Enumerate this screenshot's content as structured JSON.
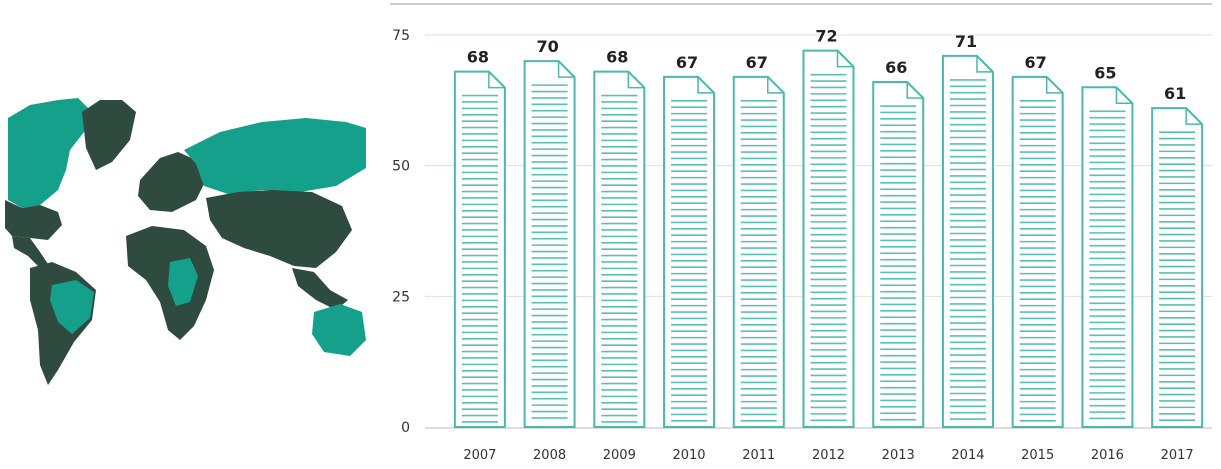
{
  "colors": {
    "teal": "#15a08c",
    "dark": "#2f4a3f",
    "doc_stroke": "#4cb8ad",
    "doc_line": "#5bbfb4",
    "grid": "#f1d9d2",
    "axis": "#777777"
  },
  "map": {
    "icon": "world-map-icon"
  },
  "chart_data": {
    "type": "bar",
    "title": "",
    "xlabel": "",
    "ylabel": "",
    "categories": [
      "2007",
      "2008",
      "2009",
      "2010",
      "2011",
      "2012",
      "2013",
      "2014",
      "2015",
      "2016",
      "2017"
    ],
    "values": [
      68,
      70,
      68,
      67,
      67,
      72,
      66,
      71,
      67,
      65,
      61
    ],
    "yticks": [
      0,
      25,
      50,
      75
    ],
    "ylim": [
      0,
      75
    ],
    "grid": true,
    "mark_style": "document-icon"
  }
}
